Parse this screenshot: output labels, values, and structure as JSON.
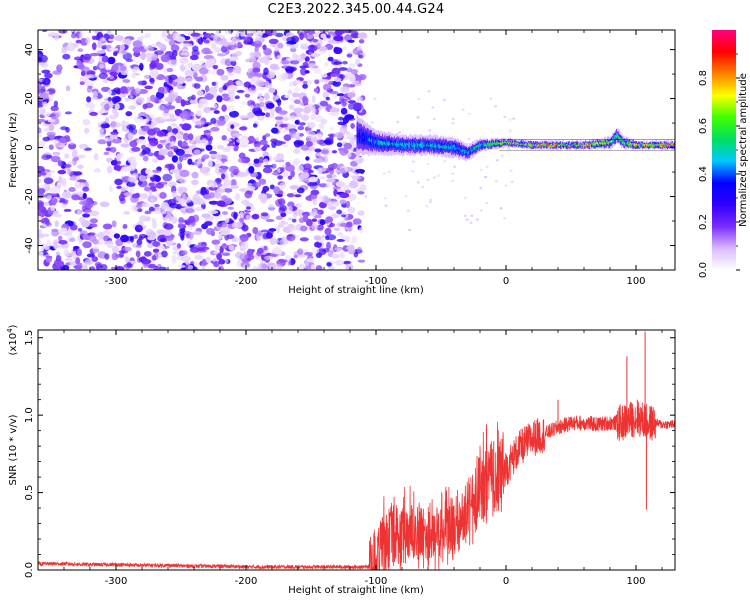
{
  "figure": {
    "title": "C2E3.2022.345.00.44.G24"
  },
  "chart_data": [
    {
      "type": "heatmap",
      "title": "C2E3.2022.345.00.44.G24",
      "xlabel": "Height of straight line (km)",
      "ylabel": "Frequency (Hz)",
      "xlim": [
        -360,
        130
      ],
      "ylim": [
        -50,
        48
      ],
      "xticks": [
        -300,
        -200,
        -100,
        0,
        100
      ],
      "xtick_labels": [
        "-300",
        "-200",
        "-100",
        "0",
        "100"
      ],
      "yticks": [
        -40,
        -20,
        0,
        20,
        40
      ],
      "ytick_labels": [
        "-40",
        "-20",
        "0",
        "20",
        "40"
      ],
      "colorbar": {
        "label": "Normalized spectral amplitude",
        "range": [
          0.0,
          1.0
        ],
        "ticks": [
          0.0,
          0.2,
          0.4,
          0.6,
          0.8
        ],
        "tick_labels": [
          "0.0",
          "0.2",
          "0.4",
          "0.6",
          "0.8"
        ],
        "colormap": [
          "#ffffff",
          "#d8b8ff",
          "#7a2cff",
          "#3000ff",
          "#0000ff",
          "#00c8ff",
          "#00e060",
          "#40ff00",
          "#ffff00",
          "#ff8000",
          "#ff0000",
          "#ff0080"
        ]
      },
      "regions": [
        {
          "x": [
            -360,
            -110
          ],
          "y": [
            -50,
            48
          ],
          "description_value": 0.15
        },
        {
          "x": [
            -110,
            130
          ],
          "y": [
            -2,
            4
          ],
          "description_value": 0.7
        }
      ],
      "narrowband_line": {
        "x": [
          -115,
          -100,
          -80,
          -60,
          -40,
          -30,
          -20,
          0,
          20,
          40,
          60,
          80,
          85,
          90,
          100,
          120,
          130
        ],
        "center_hz": [
          5,
          2,
          1,
          1,
          0,
          -2,
          1,
          2,
          1,
          1,
          1,
          2,
          5,
          2,
          1,
          1,
          1
        ],
        "width_hz": [
          10,
          6,
          5,
          5,
          5,
          4,
          3,
          2,
          2,
          2,
          2,
          3,
          4,
          3,
          2,
          2,
          2
        ],
        "peak_amplitude": [
          0.3,
          0.45,
          0.5,
          0.5,
          0.45,
          0.45,
          0.55,
          0.7,
          0.75,
          0.8,
          0.8,
          0.7,
          0.6,
          0.7,
          0.75,
          0.8,
          0.8
        ]
      },
      "grid": false
    },
    {
      "type": "line",
      "xlabel": "Height of straight line (km)",
      "ylabel": "SNR (10 * v/v)",
      "yscale_label": "(x10",
      "yscale_exponent": "4",
      "yscale_suffix": ")",
      "xlim": [
        -360,
        130
      ],
      "ylim": [
        0.0,
        1.55
      ],
      "xticks": [
        -300,
        -200,
        -100,
        0,
        100
      ],
      "xtick_labels": [
        "-300",
        "-200",
        "-100",
        "0",
        "100"
      ],
      "yticks": [
        0.0,
        0.5,
        1.0,
        1.5
      ],
      "ytick_labels": [
        "0.0",
        "0.5",
        "1.0",
        "1.5"
      ],
      "color": "#ee3333",
      "series": [
        {
          "x": [
            -360,
            -340,
            -320,
            -300,
            -280,
            -260,
            -240,
            -220,
            -200,
            -180,
            -160,
            -140,
            -120,
            -110,
            -105,
            -100,
            -95,
            -90,
            -80,
            -70,
            -60,
            -50,
            -40,
            -35,
            -30,
            -25,
            -20,
            -15,
            -10,
            -5,
            0,
            5,
            10,
            20,
            30,
            40,
            50,
            60,
            70,
            80,
            90,
            95,
            100,
            105,
            107,
            110,
            115,
            120,
            130
          ],
          "y": [
            0.04,
            0.04,
            0.035,
            0.035,
            0.03,
            0.03,
            0.025,
            0.025,
            0.02,
            0.02,
            0.02,
            0.02,
            0.02,
            0.02,
            0.02,
            0.1,
            0.15,
            0.2,
            0.22,
            0.23,
            0.22,
            0.24,
            0.26,
            0.3,
            0.35,
            0.4,
            0.52,
            0.55,
            0.57,
            0.62,
            0.65,
            0.72,
            0.78,
            0.85,
            0.88,
            0.92,
            0.95,
            0.95,
            0.94,
            0.95,
            0.95,
            0.97,
            0.98,
            0.97,
            0.96,
            0.95,
            0.95,
            0.94,
            0.94
          ]
        }
      ],
      "spikes": [
        {
          "x": -15,
          "y": 0.94
        },
        {
          "x": -20,
          "y": 0.6
        },
        {
          "x": 40,
          "y": 1.1
        },
        {
          "x": 93,
          "y": 1.38
        },
        {
          "x": 101,
          "y": 1.1
        },
        {
          "x": 107,
          "y": 1.54
        },
        {
          "x": 108,
          "y": 0.39
        }
      ]
    }
  ]
}
